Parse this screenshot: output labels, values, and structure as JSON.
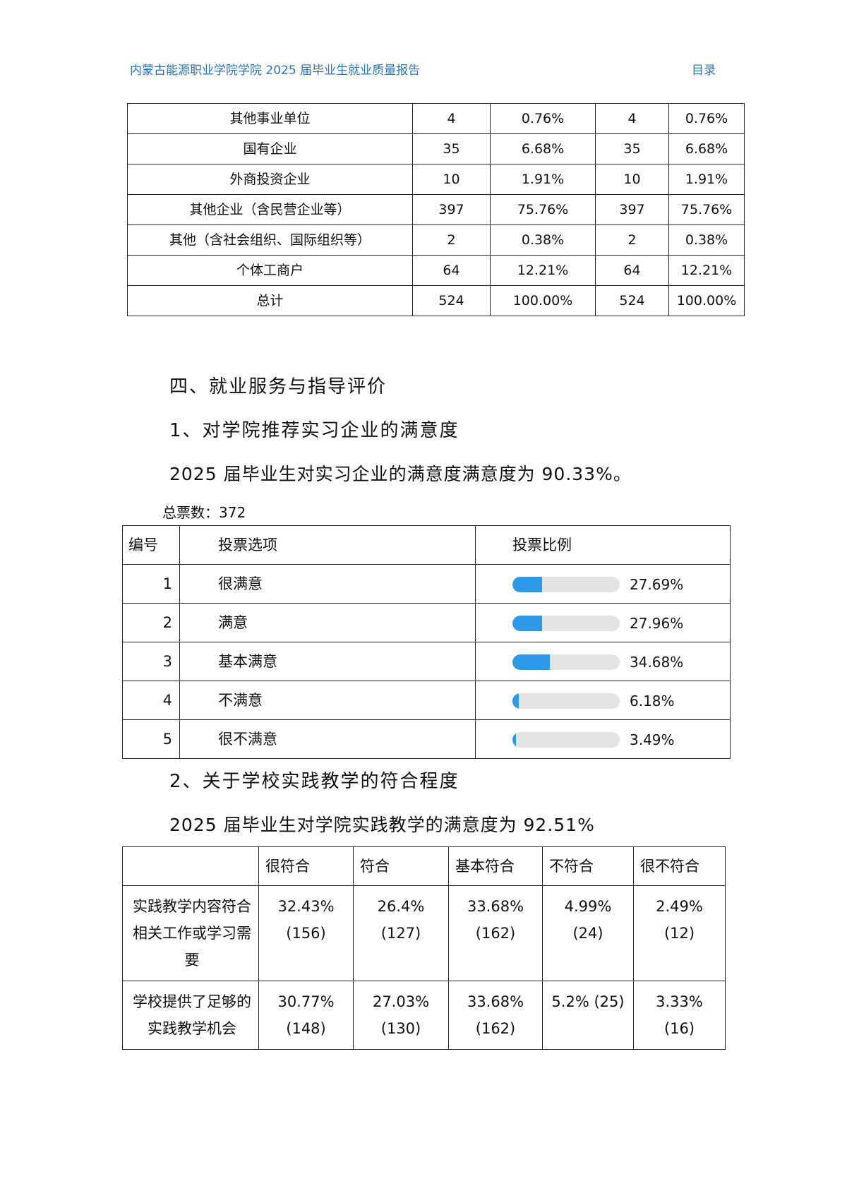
{
  "header": {
    "title": "内蒙古能源职业学院学院 2025 届毕业生就业质量报告",
    "toc_link": "目录"
  },
  "employer_table": {
    "rows": [
      [
        "其他事业单位",
        "4",
        "0.76%",
        "4",
        "0.76%"
      ],
      [
        "国有企业",
        "35",
        "6.68%",
        "35",
        "6.68%"
      ],
      [
        "外商投资企业",
        "10",
        "1.91%",
        "10",
        "1.91%"
      ],
      [
        "其他企业（含民营企业等）",
        "397",
        "75.76%",
        "397",
        "75.76%"
      ],
      [
        "其他（含社会组织、国际组织等）",
        "2",
        "0.38%",
        "2",
        "0.38%"
      ],
      [
        "个体工商户",
        "64",
        "12.21%",
        "64",
        "12.21%"
      ],
      [
        "总计",
        "524",
        "100.00%",
        "524",
        "100.00%"
      ]
    ]
  },
  "section4": {
    "heading": "四、就业服务与指导评价",
    "sub1": "1、对学院推荐实习企业的满意度",
    "sub1_text": "2025 届毕业生对实习企业的满意度满意度为 90.33%。",
    "total_votes": "总票数：372",
    "vote_table": {
      "headers": [
        "编号",
        "投票选项",
        "投票比例"
      ],
      "rows": [
        {
          "no": "1",
          "option": "很满意",
          "pct": "27.69%",
          "value": 27.69
        },
        {
          "no": "2",
          "option": "满意",
          "pct": "27.96%",
          "value": 27.96
        },
        {
          "no": "3",
          "option": "基本满意",
          "pct": "34.68%",
          "value": 34.68
        },
        {
          "no": "4",
          "option": "不满意",
          "pct": "6.18%",
          "value": 6.18
        },
        {
          "no": "5",
          "option": "很不满意",
          "pct": "3.49%",
          "value": 3.49
        }
      ],
      "bar_color": "#2d9ae8"
    },
    "sub2": "2、关于学校实践教学的符合程度",
    "sub2_text": "2025 届毕业生对学院实践教学的满意度为 92.51%",
    "practice_table": {
      "headers": [
        "",
        "很符合",
        "符合",
        "基本符合",
        "不符合",
        "很不符合"
      ],
      "rows": [
        [
          "实践教学内容符合相关工作或学习需要",
          "32.43% (156)",
          "26.4% (127)",
          "33.68% (162)",
          "4.99% (24)",
          "2.49% (12)"
        ],
        [
          "学校提供了足够的实践教学机会",
          "30.77% (148)",
          "27.03% (130)",
          "33.68% (162)",
          "5.2% (25)",
          "3.33% (16)"
        ]
      ]
    }
  }
}
